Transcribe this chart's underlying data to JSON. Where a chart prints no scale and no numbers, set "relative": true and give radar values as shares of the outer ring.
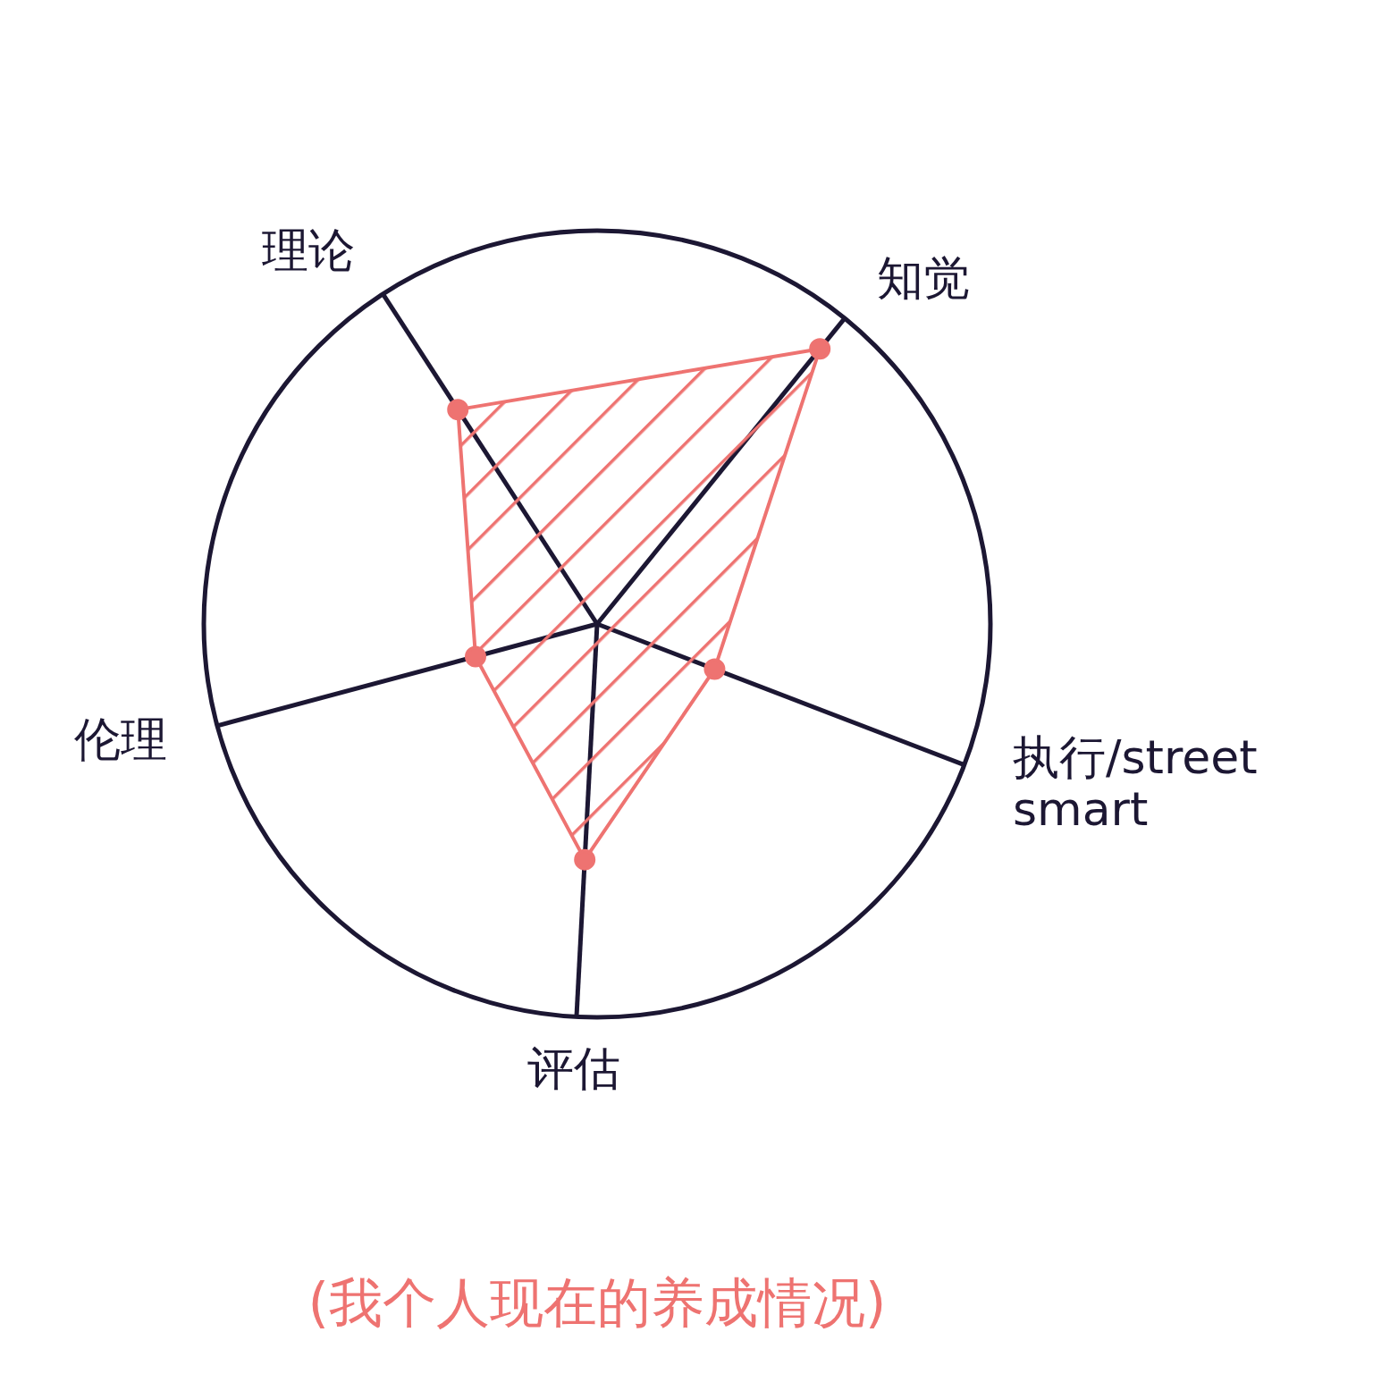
{
  "chart_data": {
    "type": "radar",
    "categories": [
      "知觉",
      "执行/street smart",
      "评估",
      "伦理",
      "理论"
    ],
    "series": [
      {
        "color": "#ee7371",
        "values": [
          0.9,
          0.32,
          0.6,
          0.32,
          0.65
        ]
      }
    ],
    "relative": true,
    "grid": true,
    "marker": "circle",
    "annotations": [
      "(我个人现在的养成情况)"
    ]
  }
}
